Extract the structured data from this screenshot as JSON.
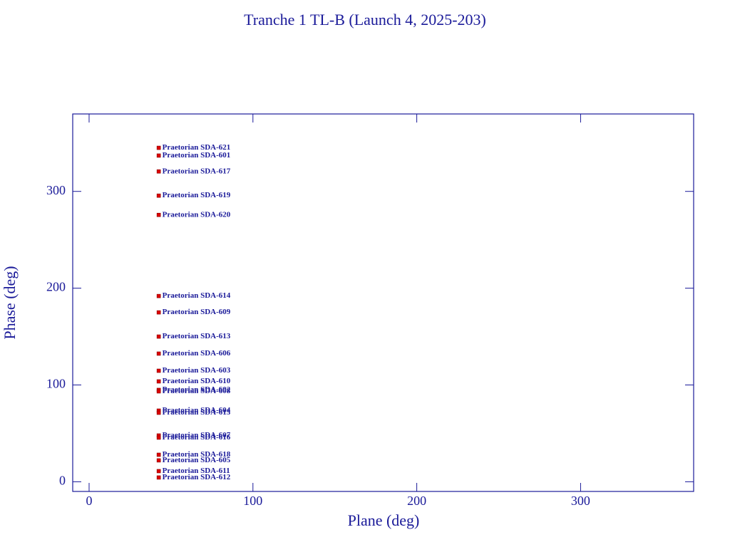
{
  "chart_data": {
    "type": "scatter",
    "title": "Tranche 1 TL-B (Launch 4, 2025-203)",
    "xlabel": "Plane (deg)",
    "ylabel": "Phase (deg)",
    "xlim": [
      -10,
      369
    ],
    "ylim": [
      -10,
      380
    ],
    "xticks": [
      0,
      100,
      200,
      300
    ],
    "yticks": [
      0,
      100,
      200,
      300
    ],
    "color": "#dd0000",
    "label_color": "#1a1a99",
    "axis_color": "#1a1a99",
    "labels": [
      "Praetorian SDA-621",
      "Praetorian SDA-601",
      "Praetorian SDA-617",
      "Praetorian SDA-619",
      "Praetorian SDA-620",
      "Praetorian SDA-614",
      "Praetorian SDA-609",
      "Praetorian SDA-613",
      "Praetorian SDA-606",
      "Praetorian SDA-603",
      "Praetorian SDA-610",
      "Praetorian SDA-602",
      "Praetorian SDA-608",
      "Praetorian SDA-604",
      "Praetorian SDA-615",
      "Praetorian SDA-607",
      "Praetorian SDA-616",
      "Praetorian SDA-618",
      "Praetorian SDA-605",
      "Praetorian SDA-611",
      "Praetorian SDA-612"
    ],
    "x": [
      42.5,
      42.5,
      42.5,
      42.5,
      42.5,
      42.5,
      42.5,
      42.5,
      42.5,
      42.5,
      42.5,
      42.5,
      42.5,
      42.5,
      42.5,
      42.5,
      42.5,
      42.5,
      42.5,
      42.5,
      42.5
    ],
    "values": [
      345,
      337,
      320.6,
      295.6,
      275.7,
      191.9,
      175,
      150,
      132.4,
      114.7,
      103.7,
      94.9,
      93.4,
      73.5,
      71.3,
      47.8,
      45.6,
      27.9,
      22.1,
      11,
      4.4
    ]
  }
}
